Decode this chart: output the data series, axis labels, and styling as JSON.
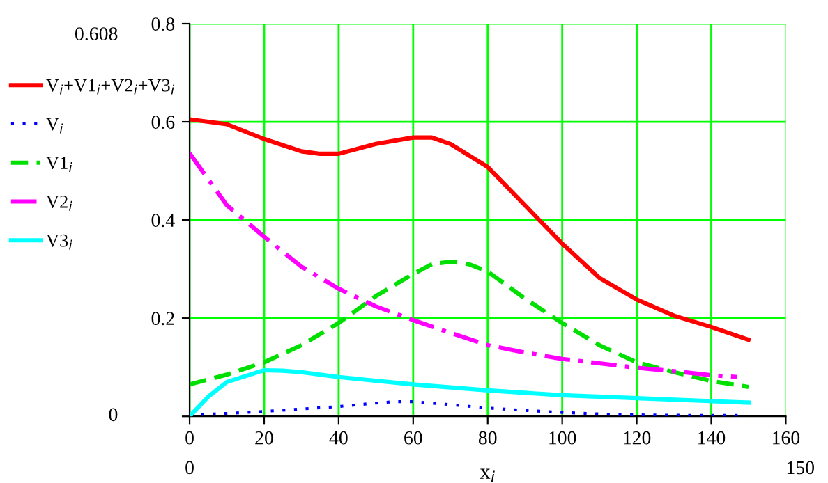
{
  "chart_data": {
    "type": "line",
    "xlabel": "x$_{i}$",
    "xlim": [
      0,
      160
    ],
    "ylim": [
      0,
      0.8
    ],
    "xticks": [
      0,
      20,
      40,
      60,
      80,
      100,
      120,
      140,
      160
    ],
    "yticks": [
      {
        "value": 0,
        "label": null
      },
      0.2,
      0.4,
      0.6,
      0.8
    ],
    "grid": true,
    "legend": "left",
    "annotations": [
      "0.608",
      "0",
      "0",
      "150"
    ],
    "series": [
      {
        "name": "V$_{i}$+V1$_{i}$+V2$_{i}$+V3$_{i}$",
        "color": "#ff0000",
        "line_style": "solid",
        "x": [
          0,
          10,
          20,
          30,
          35,
          40,
          50,
          60,
          65,
          70,
          80,
          90,
          100,
          110,
          120,
          130,
          140,
          150
        ],
        "values": [
          0.605,
          0.595,
          0.565,
          0.54,
          0.535,
          0.535,
          0.555,
          0.568,
          0.568,
          0.555,
          0.508,
          0.43,
          0.352,
          0.282,
          0.238,
          0.205,
          0.182,
          0.156
        ]
      },
      {
        "name": "V$_{i}$",
        "color": "#0000ff",
        "line_style": "dotted",
        "x": [
          0,
          10,
          20,
          30,
          40,
          50,
          55,
          60,
          70,
          80,
          90,
          100,
          110,
          120,
          135,
          148
        ],
        "values": [
          0.003,
          0.006,
          0.01,
          0.015,
          0.02,
          0.027,
          0.03,
          0.03,
          0.024,
          0.017,
          0.012,
          0.008,
          0.005,
          0.003,
          0.002,
          0.002
        ]
      },
      {
        "name": "V1$_{i}$",
        "color": "#00e000",
        "line_style": "dashed",
        "x": [
          0,
          10,
          20,
          30,
          40,
          50,
          60,
          65,
          70,
          75,
          80,
          90,
          100,
          110,
          120,
          130,
          140,
          150
        ],
        "values": [
          0.065,
          0.085,
          0.11,
          0.145,
          0.19,
          0.245,
          0.29,
          0.31,
          0.315,
          0.31,
          0.295,
          0.24,
          0.19,
          0.145,
          0.11,
          0.09,
          0.072,
          0.06
        ]
      },
      {
        "name": "V2$_{i}$",
        "color": "#ff00ff",
        "line_style": "dashdot",
        "x": [
          0,
          10,
          20,
          30,
          40,
          50,
          60,
          70,
          80,
          90,
          100,
          110,
          120,
          130,
          140,
          147
        ],
        "values": [
          0.536,
          0.43,
          0.366,
          0.305,
          0.26,
          0.224,
          0.196,
          0.17,
          0.145,
          0.13,
          0.117,
          0.108,
          0.099,
          0.092,
          0.084,
          0.08
        ]
      },
      {
        "name": "V3$_{i}$",
        "color": "#00ffff",
        "line_style": "solid",
        "x": [
          0,
          5,
          10,
          20,
          25,
          30,
          40,
          60,
          80,
          100,
          120,
          150
        ],
        "values": [
          0,
          0.04,
          0.07,
          0.094,
          0.093,
          0.09,
          0.08,
          0.065,
          0.053,
          0.043,
          0.037,
          0.028
        ]
      }
    ]
  }
}
